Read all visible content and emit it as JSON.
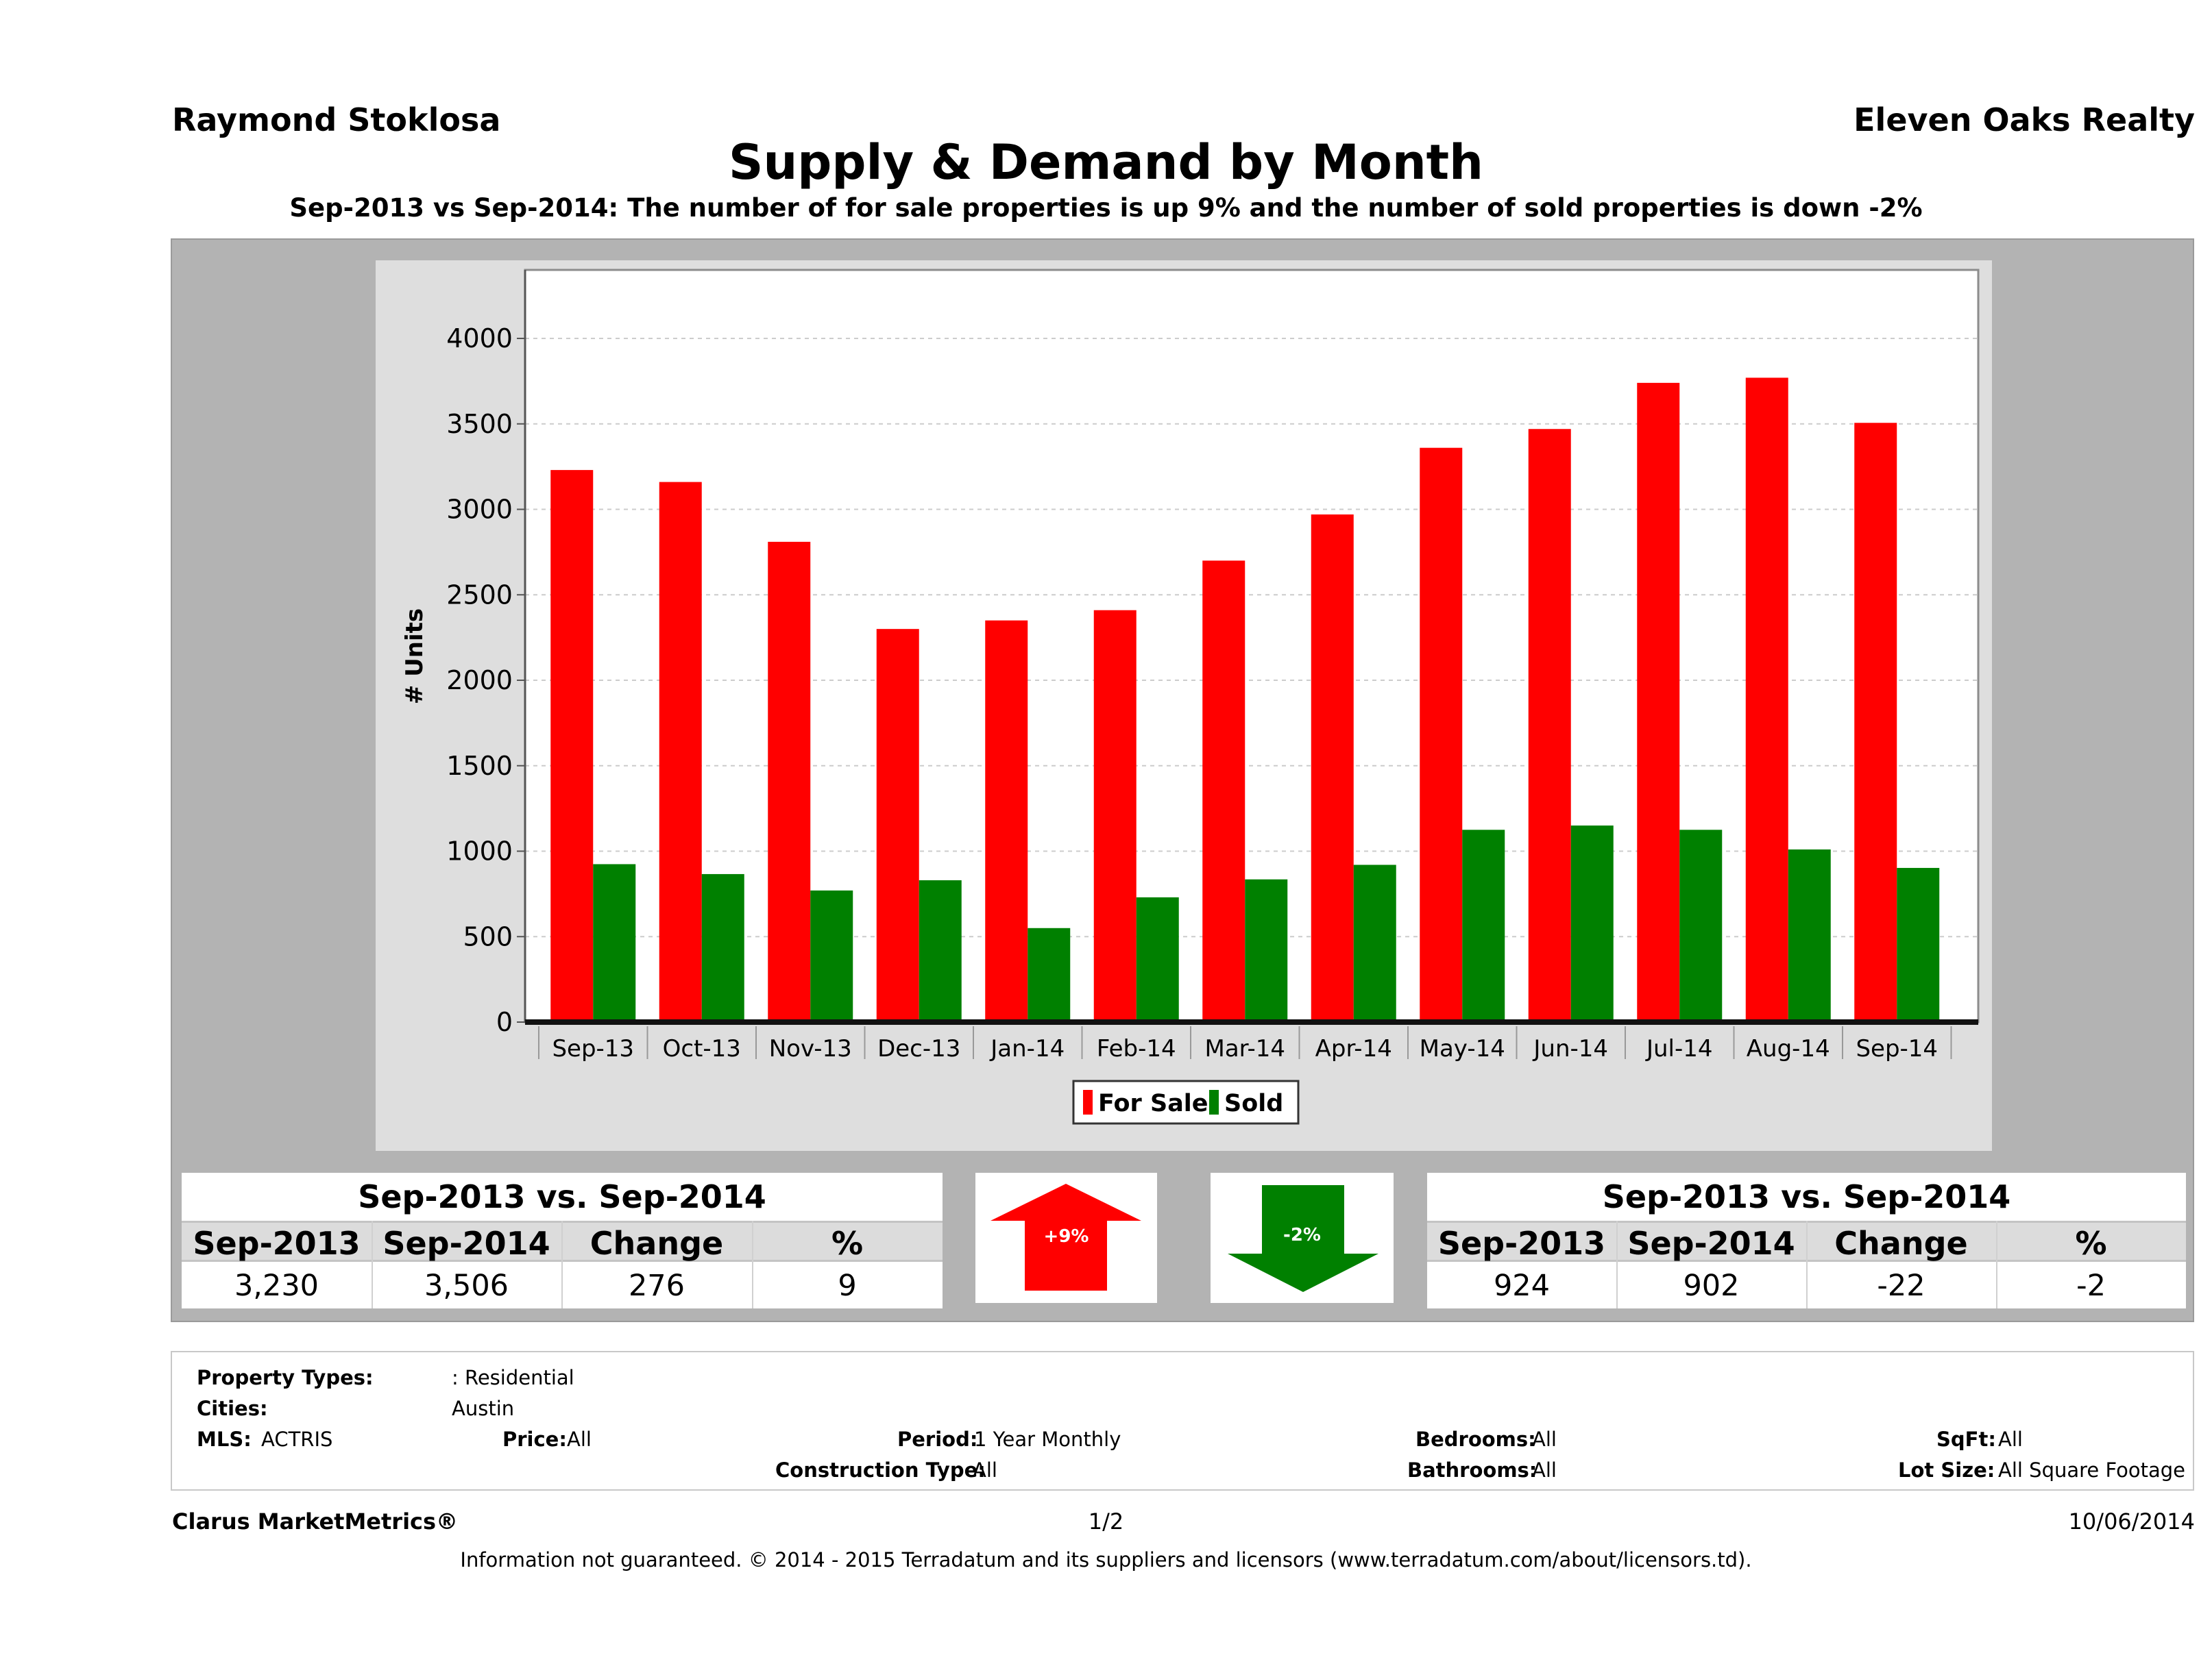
{
  "header": {
    "agent_name": "Raymond Stoklosa",
    "brokerage": "Eleven Oaks Realty",
    "title": "Supply & Demand by Month",
    "subtitle": "Sep-2013 vs Sep-2014: The number of for sale properties is up 9% and the number of sold properties is down -2%"
  },
  "chart_data": {
    "type": "bar",
    "categories": [
      "Sep-13",
      "Oct-13",
      "Nov-13",
      "Dec-13",
      "Jan-14",
      "Feb-14",
      "Mar-14",
      "Apr-14",
      "May-14",
      "Jun-14",
      "Jul-14",
      "Aug-14",
      "Sep-14"
    ],
    "series": [
      {
        "name": "For Sale",
        "color": "#ff0000",
        "values": [
          3230,
          3160,
          2810,
          2300,
          2350,
          2410,
          2700,
          2970,
          3360,
          3470,
          3740,
          3770,
          3506
        ]
      },
      {
        "name": "Sold",
        "color": "#008000",
        "values": [
          924,
          866,
          770,
          830,
          550,
          730,
          835,
          920,
          1125,
          1150,
          1125,
          1010,
          902
        ]
      }
    ],
    "ylabel": "# Units",
    "ylim": [
      0,
      4400
    ],
    "yticks": [
      0,
      500,
      1000,
      1500,
      2000,
      2500,
      3000,
      3500,
      4000
    ],
    "grid": true,
    "legend": "bottom-center"
  },
  "for_sale_stats": {
    "heading": "Sep-2013 vs. Sep-2014",
    "columns": [
      "Sep-2013",
      "Sep-2014",
      "Change",
      "%"
    ],
    "values": [
      "3,230",
      "3,506",
      "276",
      "9"
    ],
    "badge": "+9%",
    "badge_color": "#ff0000"
  },
  "sold_stats": {
    "heading": "Sep-2013 vs. Sep-2014",
    "columns": [
      "Sep-2013",
      "Sep-2014",
      "Change",
      "%"
    ],
    "values": [
      "924",
      "902",
      "-22",
      "-2"
    ],
    "badge": "-2%",
    "badge_color": "#008000"
  },
  "criteria": {
    "property_types_label": "Property Types:",
    "property_types_value": ": Residential",
    "cities_label": "Cities:",
    "cities_value": "Austin",
    "mls_label": "MLS:",
    "mls_value": "ACTRIS",
    "price_label": "Price:",
    "price_value": "All",
    "period_label": "Period:",
    "period_value": "1 Year Monthly",
    "construction_label": "Construction Type:",
    "construction_value": "All",
    "bedrooms_label": "Bedrooms:",
    "bedrooms_value": "All",
    "bathrooms_label": "Bathrooms:",
    "bathrooms_value": "All",
    "sqft_label": "SqFt:",
    "sqft_value": "All",
    "lot_label": "Lot Size:",
    "lot_value": "All Square Footage"
  },
  "footer": {
    "product": "Clarus MarketMetrics®",
    "page": "1/2",
    "date": "10/06/2014",
    "disclaimer": "Information not guaranteed. © 2014 - 2015 Terradatum and its suppliers and licensors (www.terradatum.com/about/licensors.td)."
  }
}
